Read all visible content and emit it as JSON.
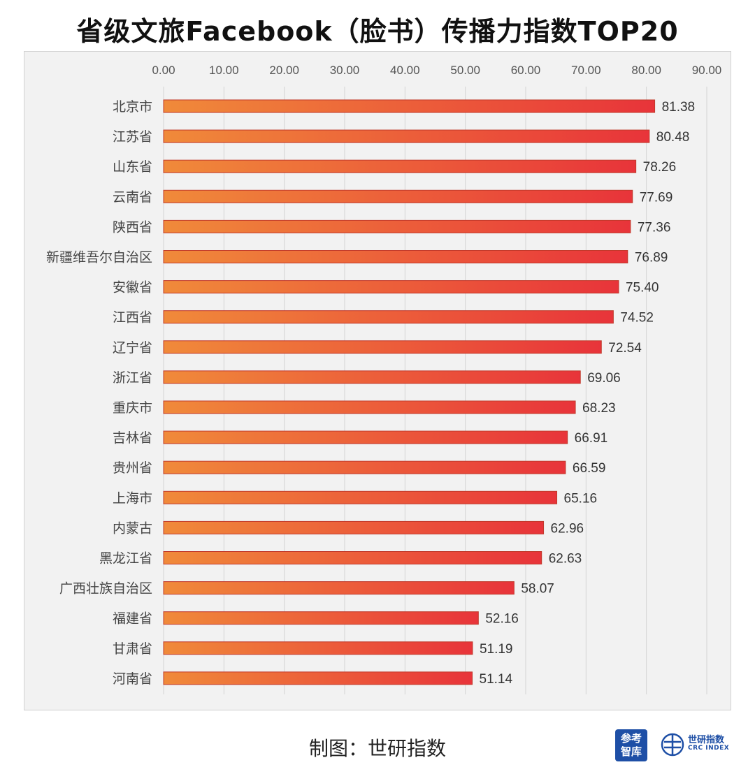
{
  "title": "省级文旅Facebook（脸书）传播力指数TOP20",
  "footer": {
    "credit": "制图：世研指数",
    "logo1_line1": "参考",
    "logo1_line2": "智库",
    "logo2_name": "世研指数",
    "logo2_sub": "CRC INDEX"
  },
  "colors": {
    "bar_start": "#f08a3a",
    "bar_end": "#e8343a",
    "bar_stroke": "#c0392b",
    "grid": "#d4d4d4",
    "frame_bg": "#f2f2f2"
  },
  "chart_data": {
    "type": "bar",
    "orientation": "horizontal",
    "title": "省级文旅Facebook（脸书）传播力指数TOP20",
    "categories": [
      "北京市",
      "江苏省",
      "山东省",
      "云南省",
      "陕西省",
      "新疆维吾尔自治区",
      "安徽省",
      "江西省",
      "辽宁省",
      "浙江省",
      "重庆市",
      "吉林省",
      "贵州省",
      "上海市",
      "内蒙古",
      "黑龙江省",
      "广西壮族自治区",
      "福建省",
      "甘肃省",
      "河南省"
    ],
    "values": [
      81.38,
      80.48,
      78.26,
      77.69,
      77.36,
      76.89,
      75.4,
      74.52,
      72.54,
      69.06,
      68.23,
      66.91,
      66.59,
      65.16,
      62.96,
      62.63,
      58.07,
      52.16,
      51.19,
      51.14
    ],
    "value_labels": [
      "81.38",
      "80.48",
      "78.26",
      "77.69",
      "77.36",
      "76.89",
      "75.40",
      "74.52",
      "72.54",
      "69.06",
      "68.23",
      "66.91",
      "66.59",
      "65.16",
      "62.96",
      "62.63",
      "58.07",
      "52.16",
      "51.19",
      "51.14"
    ],
    "xlim": [
      0,
      90
    ],
    "xticks": [
      "0.00",
      "10.00",
      "20.00",
      "30.00",
      "40.00",
      "50.00",
      "60.00",
      "70.00",
      "80.00",
      "90.00"
    ],
    "x_axis_position": "top",
    "grid": true,
    "legend": "none"
  }
}
